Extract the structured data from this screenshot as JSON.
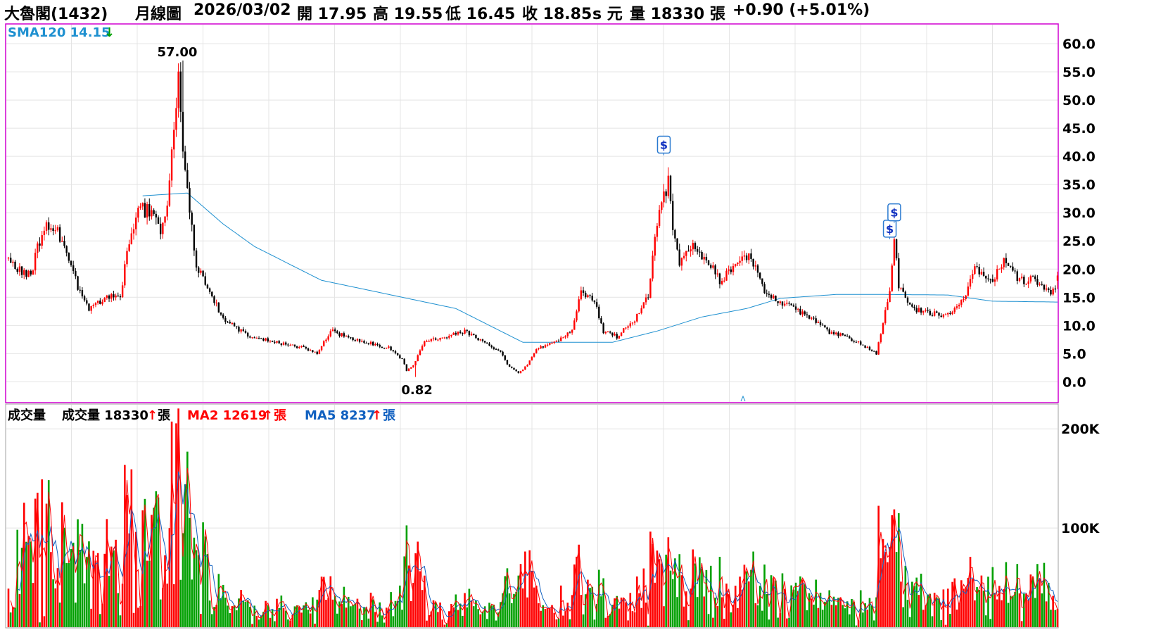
{
  "header": {
    "stock_name": "大魯閣(1432)",
    "period": "月線圖",
    "date": "2026/03/02",
    "open_label": "開 17.95",
    "high_label": "高 19.55",
    "low_label": "低 16.45",
    "close_label": "收 18.85",
    "unit_label": "s 元",
    "volume_label": "量 18330 張",
    "change_label": "+0.90 (+5.01%)"
  },
  "price_panel": {
    "sma_label": "SMA120 14.15",
    "sma_arrow": "↓",
    "max_label": "57.00",
    "min_label": "0.82",
    "dividend_marker": "$"
  },
  "volume_panel": {
    "title": "成交量",
    "vol_label": "成交量 18330",
    "ma2_label": "MA2 12619",
    "ma5_label": "MA5 8237",
    "unit": "張",
    "up_arrow": "↑"
  },
  "colors": {
    "up": "#ff0000",
    "down": "#000000",
    "vol_up": "#ff0000",
    "vol_down": "#00a000",
    "sma": "#1e90d0",
    "ma2": "#ff0000",
    "ma5": "#1060c0",
    "frame": "#d000d0",
    "grid": "#e4e4e4"
  },
  "chart_data": {
    "type": "candlestick",
    "price_axis": {
      "ticks": [
        "60.0",
        "55.0",
        "50.0",
        "45.0",
        "40.0",
        "35.0",
        "30.0",
        "25.0",
        "20.0",
        "15.0",
        "10.0",
        "5.0",
        "0.0"
      ],
      "range": [
        -3.7,
        63.5
      ]
    },
    "volume_axis": {
      "ticks": [
        "200K",
        "100K"
      ],
      "max": 225000
    },
    "anchors": [
      [
        0,
        22
      ],
      [
        5,
        20
      ],
      [
        10,
        19
      ],
      [
        16,
        28
      ],
      [
        22,
        27
      ],
      [
        28,
        20
      ],
      [
        32,
        16
      ],
      [
        36,
        13
      ],
      [
        44,
        15
      ],
      [
        50,
        15
      ],
      [
        54,
        25
      ],
      [
        58,
        31
      ],
      [
        64,
        30
      ],
      [
        68,
        26
      ],
      [
        71,
        30
      ],
      [
        74,
        45
      ],
      [
        76,
        55
      ],
      [
        78,
        40
      ],
      [
        80,
        34
      ],
      [
        84,
        21
      ],
      [
        90,
        16
      ],
      [
        96,
        11
      ],
      [
        100,
        10
      ],
      [
        108,
        8
      ],
      [
        120,
        7
      ],
      [
        132,
        6
      ],
      [
        138,
        5
      ],
      [
        144,
        9
      ],
      [
        152,
        8
      ],
      [
        160,
        7
      ],
      [
        170,
        6
      ],
      [
        176,
        4
      ],
      [
        178,
        2
      ],
      [
        181,
        3
      ],
      [
        186,
        7
      ],
      [
        196,
        8
      ],
      [
        204,
        9
      ],
      [
        212,
        7
      ],
      [
        220,
        5.5
      ],
      [
        223,
        3
      ],
      [
        228,
        1.5
      ],
      [
        232,
        3
      ],
      [
        236,
        6
      ],
      [
        245,
        7
      ],
      [
        252,
        9
      ],
      [
        256,
        16
      ],
      [
        262,
        14
      ],
      [
        266,
        9
      ],
      [
        272,
        8
      ],
      [
        280,
        11
      ],
      [
        286,
        15
      ],
      [
        290,
        28
      ],
      [
        295,
        36
      ],
      [
        297,
        27
      ],
      [
        300,
        21
      ],
      [
        306,
        24
      ],
      [
        312,
        22
      ],
      [
        318,
        18
      ],
      [
        326,
        21
      ],
      [
        332,
        22
      ],
      [
        338,
        16
      ],
      [
        346,
        14
      ],
      [
        356,
        12
      ],
      [
        366,
        9
      ],
      [
        374,
        8
      ],
      [
        382,
        6.5
      ],
      [
        388,
        5
      ],
      [
        394,
        16
      ],
      [
        396,
        25
      ],
      [
        398,
        17
      ],
      [
        404,
        13
      ],
      [
        412,
        12
      ],
      [
        420,
        12
      ],
      [
        428,
        15
      ],
      [
        432,
        20
      ],
      [
        440,
        18
      ],
      [
        446,
        22
      ],
      [
        452,
        18
      ],
      [
        460,
        18
      ],
      [
        466,
        16
      ],
      [
        469,
        17
      ]
    ],
    "sma120_anchors": [
      [
        60,
        33
      ],
      [
        80,
        33.5
      ],
      [
        96,
        28
      ],
      [
        110,
        24
      ],
      [
        140,
        18
      ],
      [
        170,
        15.5
      ],
      [
        200,
        13
      ],
      [
        215,
        10
      ],
      [
        230,
        7
      ],
      [
        250,
        7
      ],
      [
        270,
        7
      ],
      [
        290,
        9
      ],
      [
        310,
        11.5
      ],
      [
        330,
        13
      ],
      [
        345,
        14.8
      ],
      [
        370,
        15.5
      ],
      [
        390,
        15.5
      ],
      [
        420,
        15.4
      ],
      [
        440,
        14.3
      ],
      [
        469,
        14.15
      ]
    ],
    "dividend_points": [
      [
        293,
        40.2
      ],
      [
        394,
        25.3
      ],
      [
        396,
        28.2
      ]
    ],
    "high_point": [
      78,
      57.0
    ],
    "low_point": [
      182,
      0.82
    ],
    "last": {
      "open": 17.95,
      "high": 19.55,
      "low": 16.45,
      "close": 18.85,
      "volume": 18330,
      "ma2": 12619,
      "ma5": 8237,
      "sma120": 14.15
    }
  }
}
